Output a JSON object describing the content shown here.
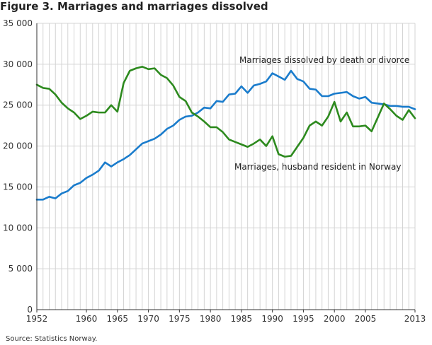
{
  "figure": {
    "title": "Figure 3. Marriages and marriages dissolved",
    "source": "Source: Statistics Norway."
  },
  "chart_data": {
    "type": "line",
    "title": "Figure 3. Marriages and marriages dissolved",
    "xlabel": "",
    "ylabel": "",
    "ylim": [
      0,
      35000
    ],
    "xlim": [
      1952,
      2013
    ],
    "grid": true,
    "y_ticks": [
      0,
      5000,
      10000,
      15000,
      20000,
      25000,
      30000,
      35000
    ],
    "y_tick_labels": [
      "0",
      "5 000",
      "10 000",
      "15 000",
      "20 000",
      "25 000",
      "30 000",
      "35 000"
    ],
    "x_tick_labels": [
      "1952",
      "1960",
      "1965",
      "1970",
      "1975",
      "1980",
      "1985",
      "1990",
      "1995",
      "2000",
      "2005",
      "2013"
    ],
    "x_tick_years": [
      1952,
      1960,
      1965,
      1970,
      1975,
      1980,
      1985,
      1990,
      1995,
      2000,
      2005,
      2013
    ],
    "x": [
      1952,
      1953,
      1954,
      1955,
      1956,
      1957,
      1958,
      1959,
      1960,
      1961,
      1962,
      1963,
      1964,
      1965,
      1966,
      1967,
      1968,
      1969,
      1970,
      1971,
      1972,
      1973,
      1974,
      1975,
      1976,
      1977,
      1978,
      1979,
      1980,
      1981,
      1982,
      1983,
      1984,
      1985,
      1986,
      1987,
      1988,
      1989,
      1990,
      1991,
      1992,
      1993,
      1994,
      1995,
      1996,
      1997,
      1998,
      1999,
      2000,
      2001,
      2002,
      2003,
      2004,
      2005,
      2006,
      2007,
      2008,
      2009,
      2010,
      2011,
      2012,
      2013
    ],
    "series": [
      {
        "name": "Marriages dissolved by death or divorce",
        "color": "#1a7ccc",
        "values": [
          13450,
          13450,
          13800,
          13600,
          14200,
          14500,
          15200,
          15500,
          16100,
          16500,
          17000,
          18000,
          17500,
          18000,
          18400,
          18900,
          19600,
          20300,
          20600,
          20900,
          21400,
          22100,
          22500,
          23200,
          23600,
          23700,
          24100,
          24700,
          24600,
          25500,
          25400,
          26300,
          26400,
          27300,
          26500,
          27400,
          27600,
          27900,
          28900,
          28500,
          28100,
          29200,
          28200,
          27900,
          27000,
          26900,
          26100,
          26100,
          26400,
          26500,
          26600,
          26100,
          25800,
          26000,
          25300,
          25200,
          25100,
          24900,
          24900,
          24800,
          24800,
          24500
        ]
      },
      {
        "name": "Marriages, husband resident in Norway",
        "color": "#2d8a1e",
        "values": [
          27500,
          27100,
          27000,
          26300,
          25300,
          24600,
          24100,
          23300,
          23700,
          24200,
          24100,
          24100,
          25000,
          24200,
          27700,
          29200,
          29500,
          29700,
          29400,
          29500,
          28700,
          28300,
          27400,
          26000,
          25500,
          24100,
          23600,
          23000,
          22300,
          22300,
          21700,
          20800,
          20500,
          20200,
          19900,
          20300,
          20800,
          20000,
          21200,
          19000,
          18700,
          18800,
          19900,
          21000,
          22500,
          23000,
          22500,
          23600,
          25400,
          23000,
          24100,
          22400,
          22400,
          22500,
          21800,
          23500,
          25200,
          24500,
          23700,
          23200,
          24400,
          23400
        ]
      }
    ],
    "annotations": [
      {
        "text": "Marriages dissolved by death or divorce",
        "series": 0
      },
      {
        "text": "Marriages, husband resident in Norway",
        "series": 1
      }
    ]
  }
}
